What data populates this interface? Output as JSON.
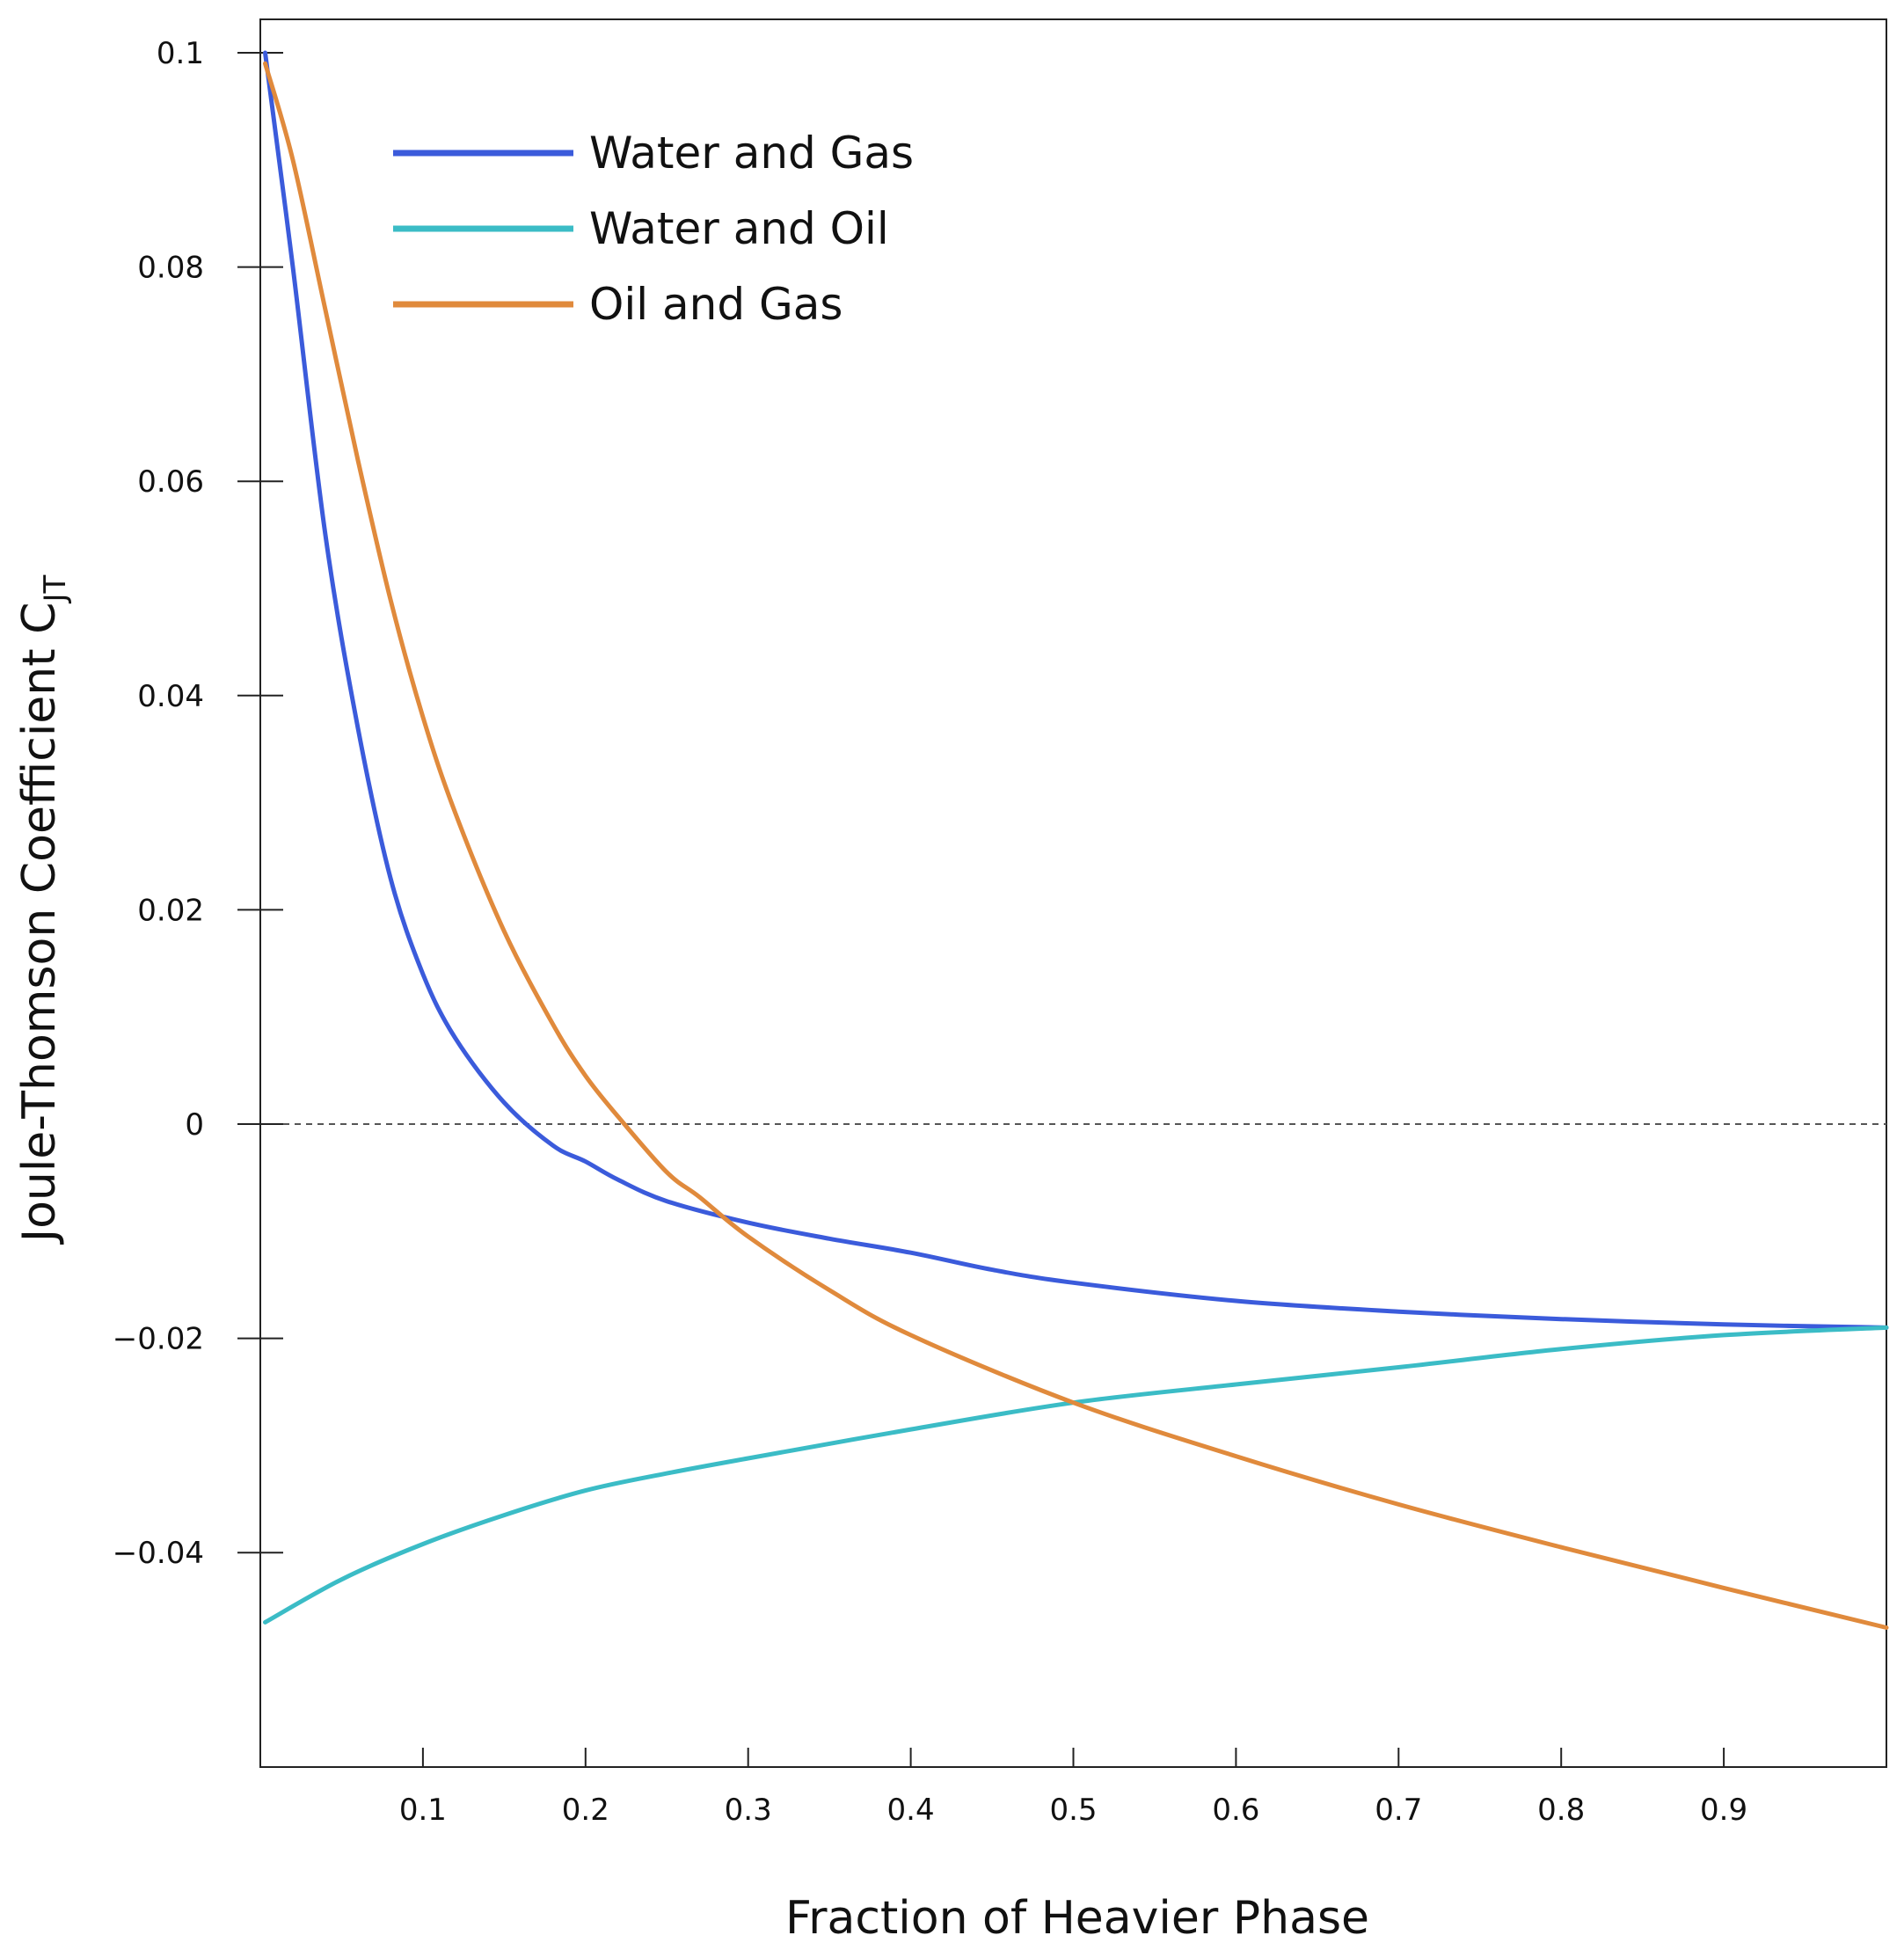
{
  "chart_data": {
    "type": "line",
    "title": "",
    "xlabel": "Fraction of Heavier Phase",
    "ylabel_main": "Joule-Thomson Coefficient C",
    "ylabel_sub": "JT",
    "xlim": [
      0.0,
      1.0
    ],
    "ylim": [
      -0.06,
      0.103
    ],
    "x_ticks": [
      0.1,
      0.2,
      0.3,
      0.4,
      0.5,
      0.6,
      0.7,
      0.8,
      0.9
    ],
    "x_tick_labels": [
      "0.1",
      "0.2",
      "0.3",
      "0.4",
      "0.5",
      "0.6",
      "0.7",
      "0.8",
      "0.9"
    ],
    "y_ticks": [
      0.1,
      0.08,
      0.06,
      0.04,
      0.02,
      0,
      -0.02,
      -0.04
    ],
    "y_tick_labels": [
      "0.1",
      "0.08",
      "0.06",
      "0.04",
      "0.02",
      "0",
      "−0.02",
      "−0.04"
    ],
    "reference_line": {
      "y": 0,
      "style": "dashed"
    },
    "legend_position": "top-left",
    "series": [
      {
        "name": "Water and Gas",
        "color": "#3b5bdb",
        "x": [
          0.003,
          0.02,
          0.04,
          0.06,
          0.08,
          0.1,
          0.12,
          0.15,
          0.18,
          0.2,
          0.22,
          0.25,
          0.3,
          0.35,
          0.4,
          0.45,
          0.5,
          0.6,
          0.7,
          0.8,
          0.9,
          1.0
        ],
        "y": [
          0.1,
          0.08,
          0.055,
          0.037,
          0.023,
          0.014,
          0.008,
          0.002,
          -0.002,
          -0.0035,
          -0.0052,
          -0.0072,
          -0.0092,
          -0.0107,
          -0.012,
          -0.0136,
          -0.0148,
          -0.0165,
          -0.0175,
          -0.0182,
          -0.0187,
          -0.019
        ]
      },
      {
        "name": "Water and Oil",
        "color": "#3bbcc6",
        "x": [
          0.003,
          0.05,
          0.1,
          0.15,
          0.2,
          0.25,
          0.3,
          0.4,
          0.5,
          0.6,
          0.7,
          0.8,
          0.9,
          1.0
        ],
        "y": [
          -0.0465,
          -0.0425,
          -0.0392,
          -0.0365,
          -0.0342,
          -0.0326,
          -0.0312,
          -0.0285,
          -0.026,
          -0.0243,
          -0.0227,
          -0.021,
          -0.0197,
          -0.019
        ]
      },
      {
        "name": "Oil and Gas",
        "color": "#e08a3c",
        "x": [
          0.003,
          0.02,
          0.04,
          0.06,
          0.08,
          0.1,
          0.12,
          0.15,
          0.18,
          0.2,
          0.22,
          0.25,
          0.27,
          0.3,
          0.35,
          0.4,
          0.5,
          0.6,
          0.7,
          0.8,
          0.9,
          1.0
        ],
        "y": [
          0.099,
          0.09,
          0.076,
          0.062,
          0.049,
          0.038,
          0.029,
          0.018,
          0.0093,
          0.0045,
          0.0007,
          -0.0045,
          -0.0068,
          -0.0105,
          -0.0155,
          -0.0197,
          -0.026,
          -0.031,
          -0.0355,
          -0.0395,
          -0.0433,
          -0.047
        ]
      }
    ]
  }
}
